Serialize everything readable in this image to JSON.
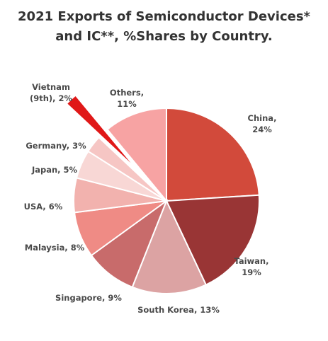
{
  "chart_data": {
    "type": "pie",
    "title_line1": "2021 Exports of Semiconductor Devices*",
    "title_line2": "and IC**, %Shares by Country.",
    "slices": [
      {
        "name": "China",
        "value": 24,
        "label_lines": [
          "China,",
          "24%"
        ],
        "color": "#d24a3b"
      },
      {
        "name": "Taiwan",
        "value": 19,
        "label_lines": [
          "Taiwan,",
          "19%"
        ],
        "color": "#993535"
      },
      {
        "name": "South Korea",
        "value": 13,
        "label_lines": [
          "South Korea, 13%"
        ],
        "color": "#dca3a3"
      },
      {
        "name": "Singapore",
        "value": 9,
        "label_lines": [
          "Singapore, 9%"
        ],
        "color": "#c86b6b"
      },
      {
        "name": "Malaysia",
        "value": 8,
        "label_lines": [
          "Malaysia, 8%"
        ],
        "color": "#ef8b85"
      },
      {
        "name": "USA",
        "value": 6,
        "label_lines": [
          "USA, 6%"
        ],
        "color": "#f2b2ae"
      },
      {
        "name": "Japan",
        "value": 5,
        "label_lines": [
          "Japan, 5%"
        ],
        "color": "#f8d7d5"
      },
      {
        "name": "Germany",
        "value": 3,
        "label_lines": [
          "Germany, 3%"
        ],
        "color": "#f6c6c4"
      },
      {
        "name": "Vietnam (9th)",
        "value": 2,
        "label_lines": [
          "Vietnam",
          "(9th), 2%"
        ],
        "color": "#e01818",
        "exploded": true
      },
      {
        "name": "Others",
        "value": 11,
        "label_lines": [
          "Others,",
          "11%"
        ],
        "color": "#f7a3a3"
      }
    ]
  }
}
